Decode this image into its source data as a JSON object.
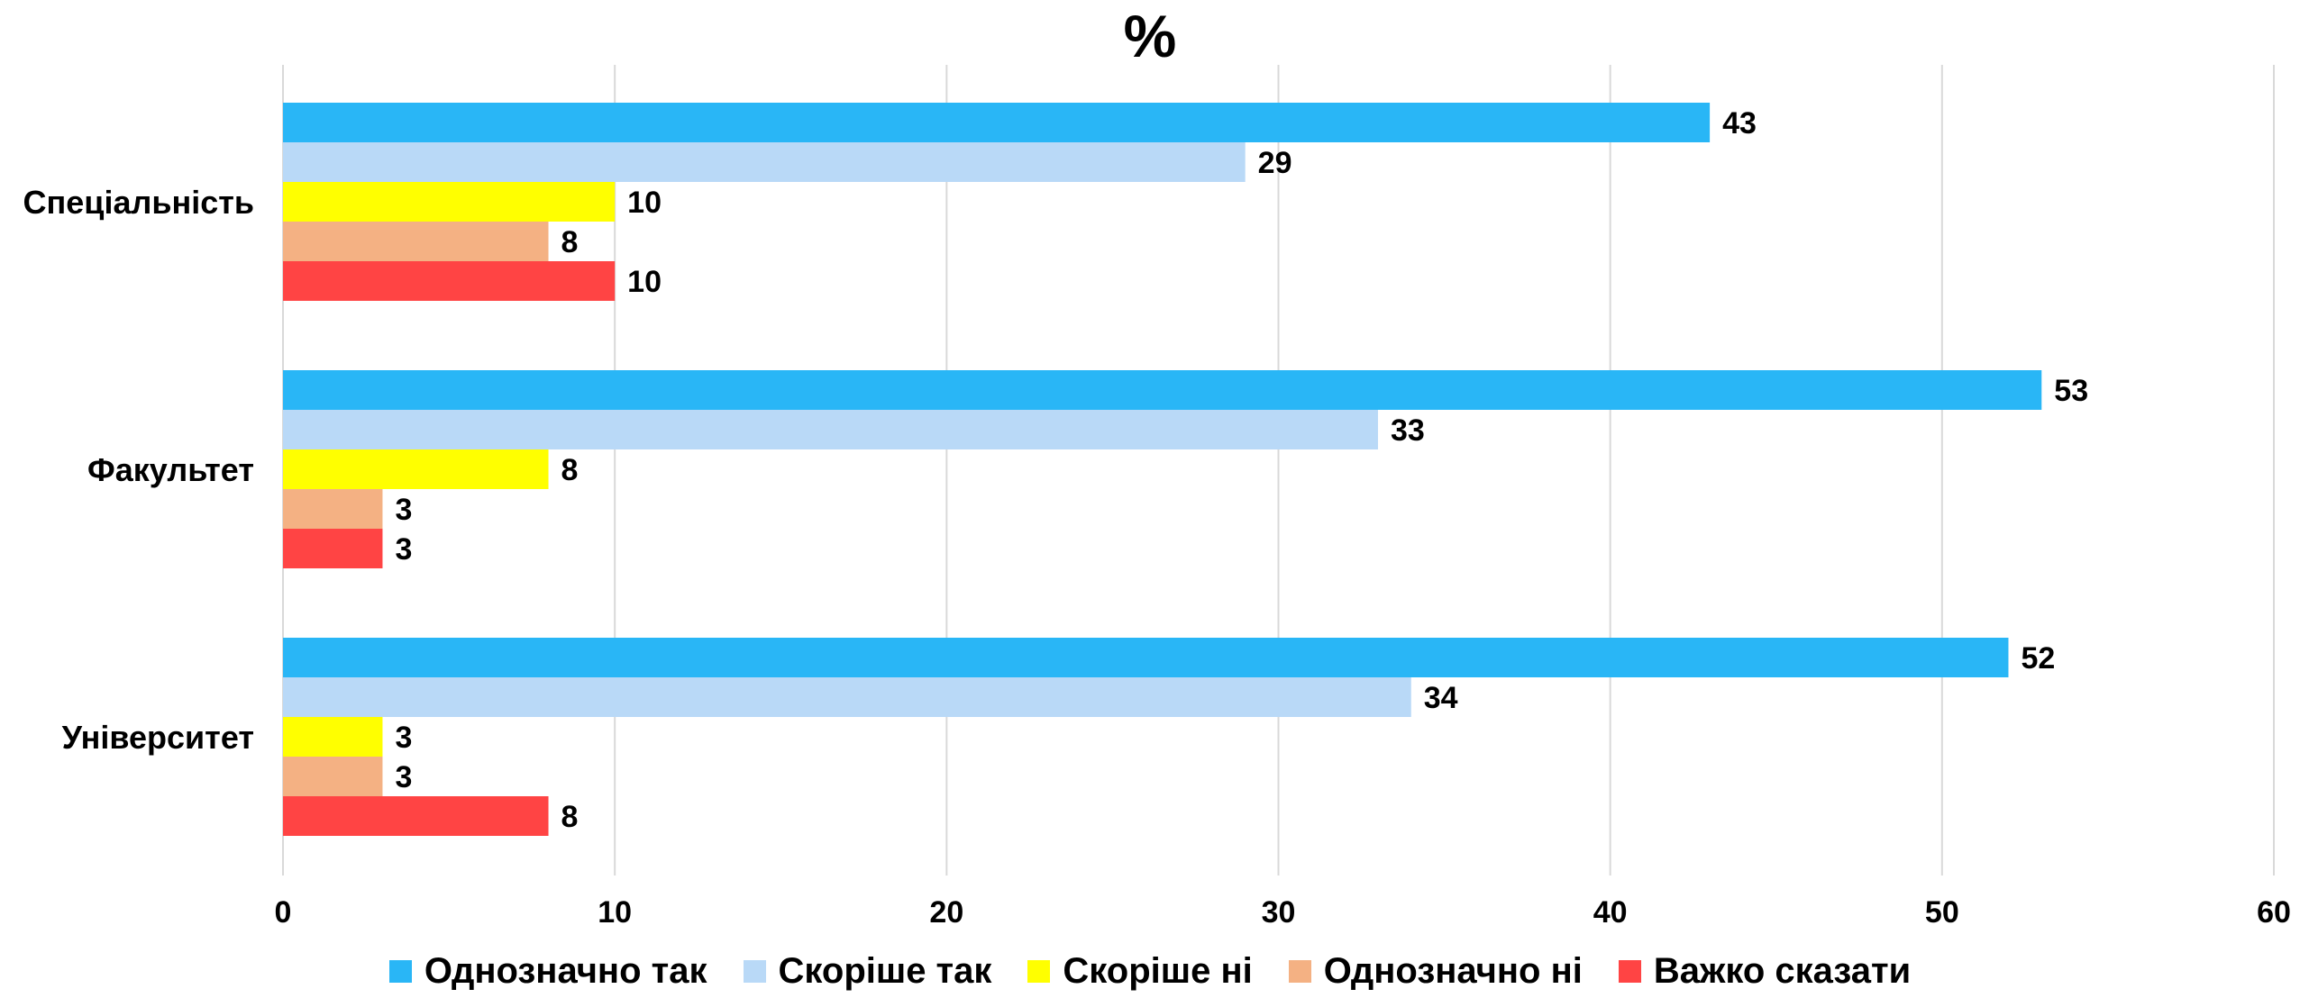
{
  "chart_data": {
    "type": "bar",
    "orientation": "horizontal",
    "title": "%",
    "categories": [
      "Спеціальність",
      "Факультет",
      "Університет"
    ],
    "series": [
      {
        "name": "Однозначно так",
        "color": "#29B6F6",
        "values": [
          43,
          53,
          52
        ]
      },
      {
        "name": "Скоріше так",
        "color": "#B9D9F7",
        "values": [
          29,
          33,
          34
        ]
      },
      {
        "name": "Скоріше ні",
        "color": "#FFFF00",
        "values": [
          10,
          8,
          3
        ]
      },
      {
        "name": "Однозначно ні",
        "color": "#F4B183",
        "values": [
          8,
          3,
          3
        ]
      },
      {
        "name": "Важко сказати",
        "color": "#FF4444",
        "values": [
          10,
          3,
          8
        ]
      }
    ],
    "xlim": [
      0,
      60
    ],
    "xticks": [
      0,
      10,
      20,
      30,
      40,
      50,
      60
    ],
    "grid": "vertical",
    "legend_position": "bottom",
    "data_labels": true
  }
}
